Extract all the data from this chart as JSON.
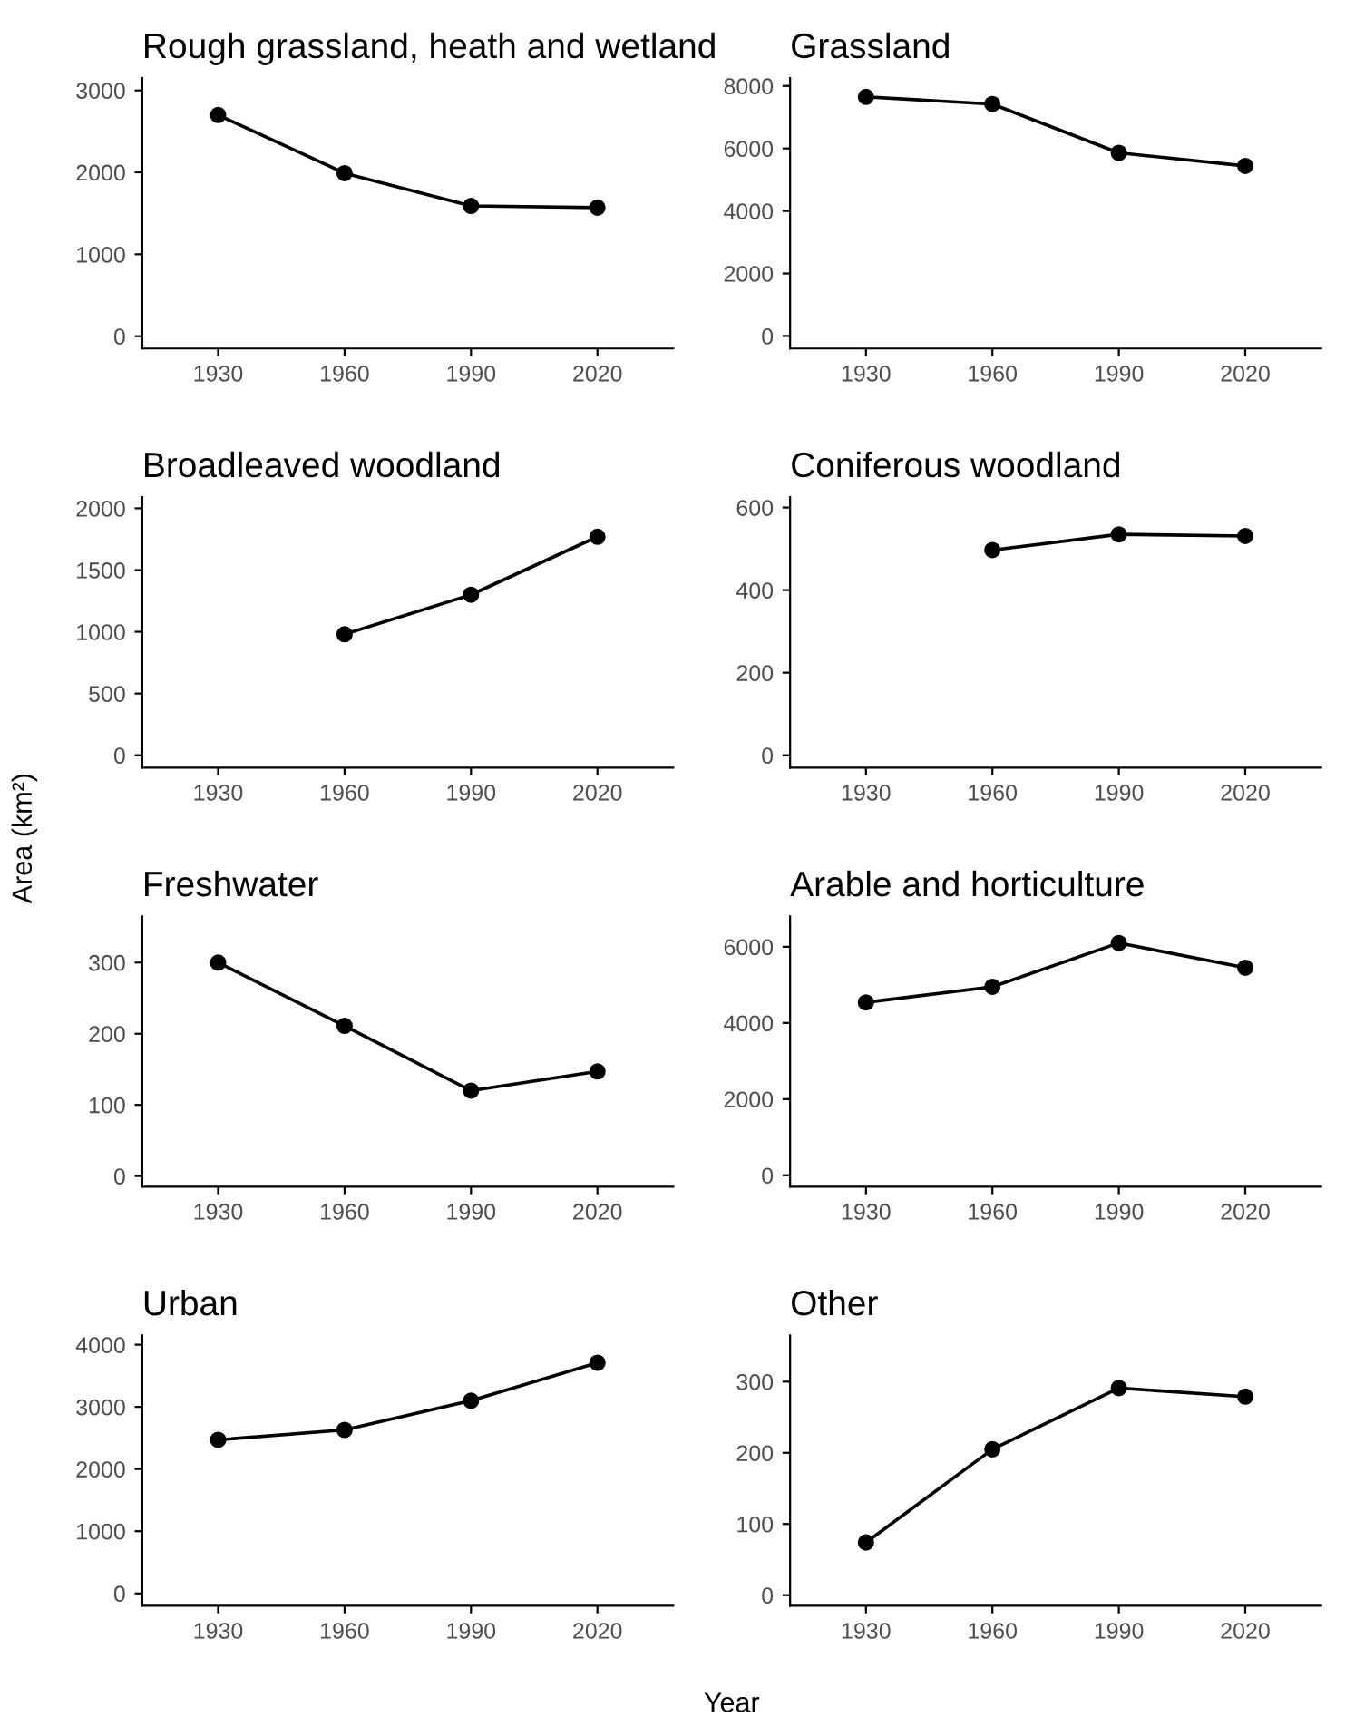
{
  "chart_data": [
    {
      "type": "line",
      "title": "Rough grassland, heath and wetland",
      "x": [
        1930,
        1960,
        1990,
        2020
      ],
      "series": [
        {
          "color": "#000000",
          "values": [
            2700,
            1990,
            1590,
            1570
          ]
        }
      ],
      "xlim": [
        1912,
        2038
      ],
      "xticks": [
        1930,
        1960,
        1990,
        2020
      ],
      "ylim": [
        -150,
        3150
      ],
      "yticks": [
        0,
        1000,
        2000,
        3000
      ],
      "marker": "circle",
      "line_style": "solid",
      "grid": false,
      "legend": false
    },
    {
      "type": "line",
      "title": "Grassland",
      "x": [
        1930,
        1960,
        1990,
        2020
      ],
      "series": [
        {
          "color": "#000000",
          "values": [
            7650,
            7420,
            5860,
            5440
          ]
        }
      ],
      "xlim": [
        1912,
        2038
      ],
      "xticks": [
        1930,
        1960,
        1990,
        2020
      ],
      "ylim": [
        -400,
        8250
      ],
      "yticks": [
        0,
        2000,
        4000,
        6000,
        8000
      ],
      "marker": "circle",
      "line_style": "solid",
      "grid": false,
      "legend": false
    },
    {
      "type": "line",
      "title": "Broadleaved woodland",
      "series": [
        {
          "color": "#000000",
          "x": [
            1960,
            1990,
            2020
          ],
          "values": [
            980,
            1300,
            1770
          ]
        }
      ],
      "xlim": [
        1912,
        2038
      ],
      "xticks": [
        1930,
        1960,
        1990,
        2020
      ],
      "ylim": [
        -100,
        2090
      ],
      "yticks": [
        0,
        500,
        1000,
        1500,
        2000
      ],
      "marker": "circle",
      "line_style": "solid",
      "grid": false,
      "legend": false
    },
    {
      "type": "line",
      "title": "Coniferous woodland",
      "series": [
        {
          "color": "#000000",
          "x": [
            1960,
            1990,
            2020
          ],
          "values": [
            497,
            535,
            531
          ]
        }
      ],
      "xlim": [
        1912,
        2038
      ],
      "xticks": [
        1930,
        1960,
        1990,
        2020
      ],
      "ylim": [
        -30,
        625
      ],
      "yticks": [
        0,
        200,
        400,
        600
      ],
      "marker": "circle",
      "line_style": "solid",
      "grid": false,
      "legend": false
    },
    {
      "type": "line",
      "title": "Freshwater",
      "annotations": [
        "Area (km²)"
      ],
      "x": [
        1930,
        1960,
        1990,
        2020
      ],
      "series": [
        {
          "color": "#000000",
          "values": [
            300,
            211,
            120,
            147
          ]
        }
      ],
      "xlim": [
        1912,
        2038
      ],
      "xticks": [
        1930,
        1960,
        1990,
        2020
      ],
      "ylim": [
        -15,
        365
      ],
      "yticks": [
        0,
        100,
        200,
        300
      ],
      "marker": "circle",
      "line_style": "solid",
      "grid": false,
      "legend": false
    },
    {
      "type": "line",
      "title": "Arable and horticulture",
      "x": [
        1930,
        1960,
        1990,
        2020
      ],
      "series": [
        {
          "color": "#000000",
          "values": [
            4540,
            4950,
            6100,
            5450
          ]
        }
      ],
      "xlim": [
        1912,
        2038
      ],
      "xticks": [
        1930,
        1960,
        1990,
        2020
      ],
      "ylim": [
        -300,
        6800
      ],
      "yticks": [
        0,
        2000,
        4000,
        6000
      ],
      "marker": "circle",
      "line_style": "solid",
      "grid": false,
      "legend": false
    },
    {
      "type": "line",
      "title": "Urban",
      "annotations": [
        "Year"
      ],
      "x": [
        1930,
        1960,
        1990,
        2020
      ],
      "series": [
        {
          "color": "#000000",
          "values": [
            2470,
            2630,
            3100,
            3710
          ]
        }
      ],
      "xlim": [
        1912,
        2038
      ],
      "xticks": [
        1930,
        1960,
        1990,
        2020
      ],
      "ylim": [
        -200,
        4150
      ],
      "yticks": [
        0,
        1000,
        2000,
        3000,
        4000
      ],
      "marker": "circle",
      "line_style": "solid",
      "grid": false,
      "legend": false
    },
    {
      "type": "line",
      "title": "Other",
      "x": [
        1930,
        1960,
        1990,
        2020
      ],
      "series": [
        {
          "color": "#000000",
          "values": [
            74,
            205,
            291,
            279
          ]
        }
      ],
      "xlim": [
        1912,
        2038
      ],
      "xticks": [
        1930,
        1960,
        1990,
        2020
      ],
      "ylim": [
        -15,
        365
      ],
      "yticks": [
        0,
        100,
        200,
        300
      ],
      "marker": "circle",
      "line_style": "solid",
      "grid": false,
      "legend": false
    }
  ]
}
